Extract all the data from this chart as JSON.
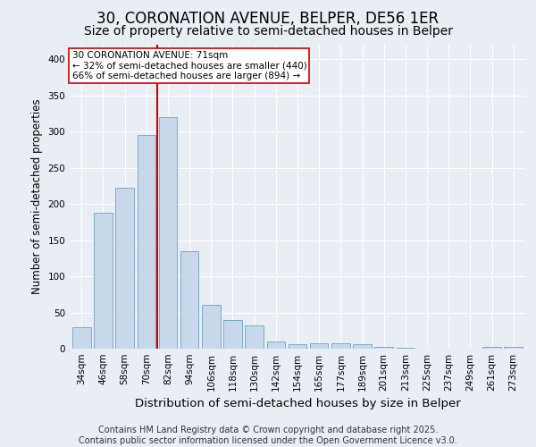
{
  "title": "30, CORONATION AVENUE, BELPER, DE56 1ER",
  "subtitle": "Size of property relative to semi-detached houses in Belper",
  "xlabel": "Distribution of semi-detached houses by size in Belper",
  "ylabel": "Number of semi-detached properties",
  "categories": [
    "34sqm",
    "46sqm",
    "58sqm",
    "70sqm",
    "82sqm",
    "94sqm",
    "106sqm",
    "118sqm",
    "130sqm",
    "142sqm",
    "154sqm",
    "165sqm",
    "177sqm",
    "189sqm",
    "201sqm",
    "213sqm",
    "225sqm",
    "237sqm",
    "249sqm",
    "261sqm",
    "273sqm"
  ],
  "values": [
    30,
    188,
    222,
    295,
    320,
    135,
    60,
    40,
    32,
    10,
    6,
    7,
    7,
    6,
    3,
    1,
    0,
    0,
    0,
    3,
    2
  ],
  "bar_color": "#c8d8eb",
  "bar_edge_color": "#7aaac8",
  "annotation_text_line1": "30 CORONATION AVENUE: 71sqm",
  "annotation_text_line2": "← 32% of semi-detached houses are smaller (440)",
  "annotation_text_line3": "66% of semi-detached houses are larger (894) →",
  "vline_color": "#cc0000",
  "annotation_box_edge": "#cc0000",
  "ylim": [
    0,
    420
  ],
  "yticks": [
    0,
    50,
    100,
    150,
    200,
    250,
    300,
    350,
    400
  ],
  "footer_line1": "Contains HM Land Registry data © Crown copyright and database right 2025.",
  "footer_line2": "Contains public sector information licensed under the Open Government Licence v3.0.",
  "background_color": "#e8eef4",
  "plot_bg_color": "#e8eef4",
  "title_fontsize": 12,
  "subtitle_fontsize": 10,
  "xlabel_fontsize": 9.5,
  "ylabel_fontsize": 8.5,
  "tick_fontsize": 7.5,
  "footer_fontsize": 7,
  "ann_fontsize": 7.5
}
